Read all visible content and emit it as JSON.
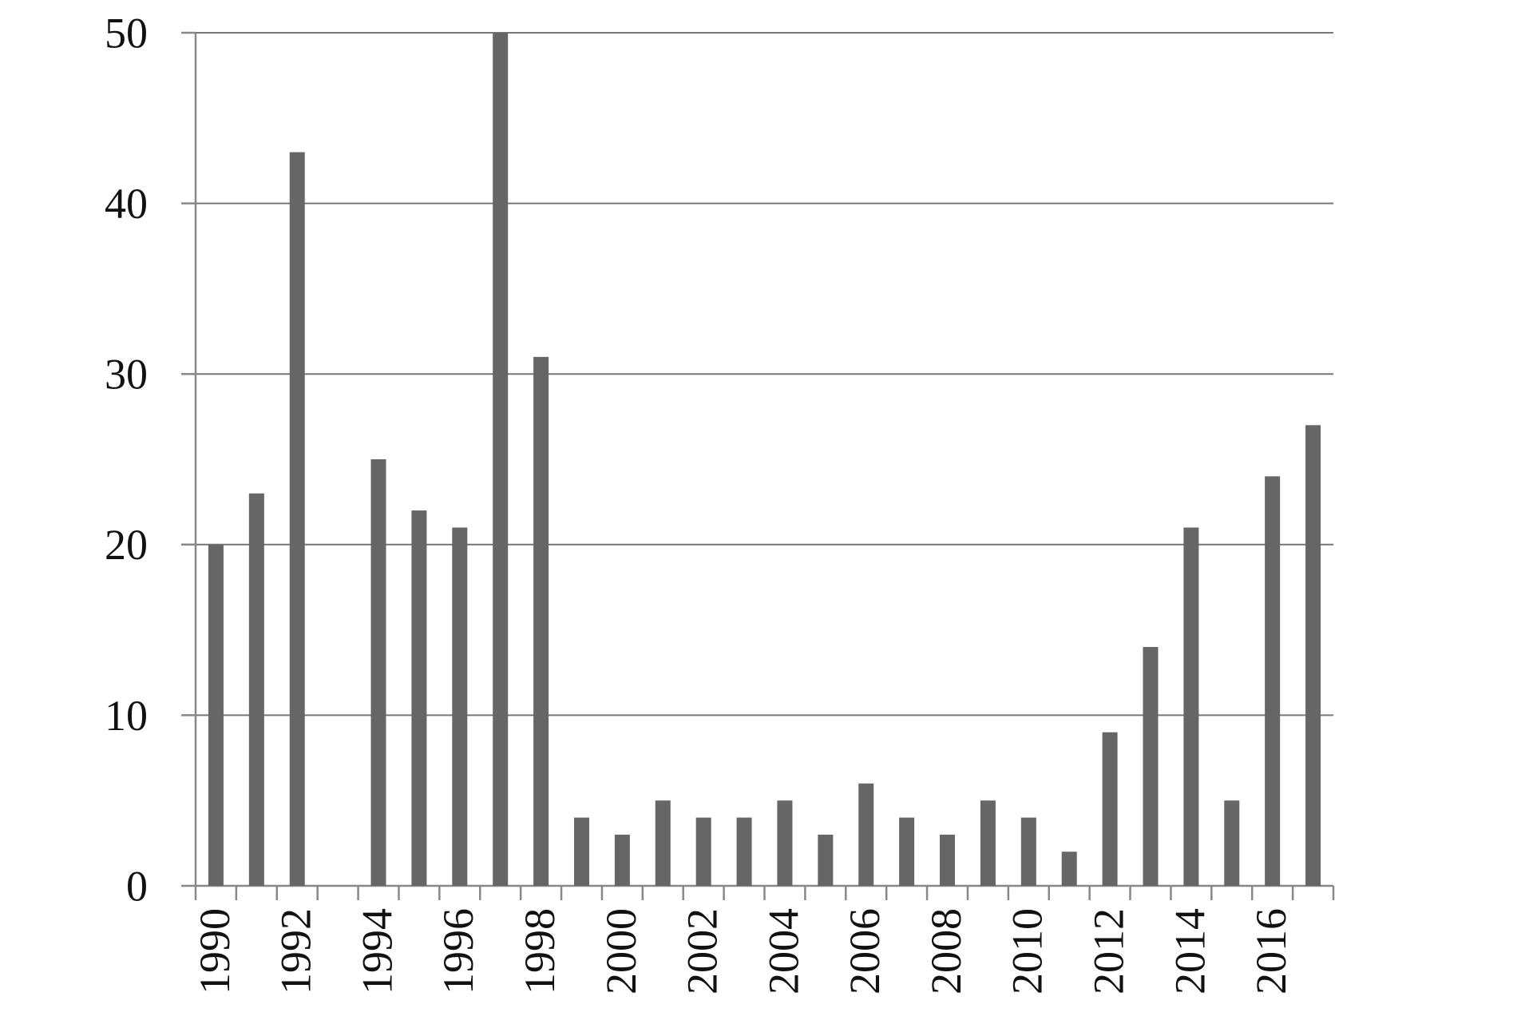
{
  "chart_data": {
    "type": "bar",
    "categories": [
      "1990",
      null,
      "1992",
      null,
      "1994",
      null,
      "1996",
      null,
      "1998",
      null,
      "2000",
      null,
      "2002",
      null,
      "2004",
      null,
      "2006",
      null,
      "2008",
      null,
      "2010",
      null,
      "2012",
      null,
      "2014",
      null,
      "2016",
      null
    ],
    "values": [
      20,
      23,
      43,
      0,
      25,
      22,
      21,
      50,
      31,
      4,
      3,
      5,
      4,
      4,
      5,
      3,
      6,
      4,
      3,
      5,
      4,
      2,
      9,
      14,
      21,
      5,
      24,
      27
    ],
    "color": "#666666",
    "ylim": [
      0,
      50
    ],
    "yticks": [
      0,
      10,
      20,
      30,
      40,
      50
    ],
    "grid": true
  }
}
